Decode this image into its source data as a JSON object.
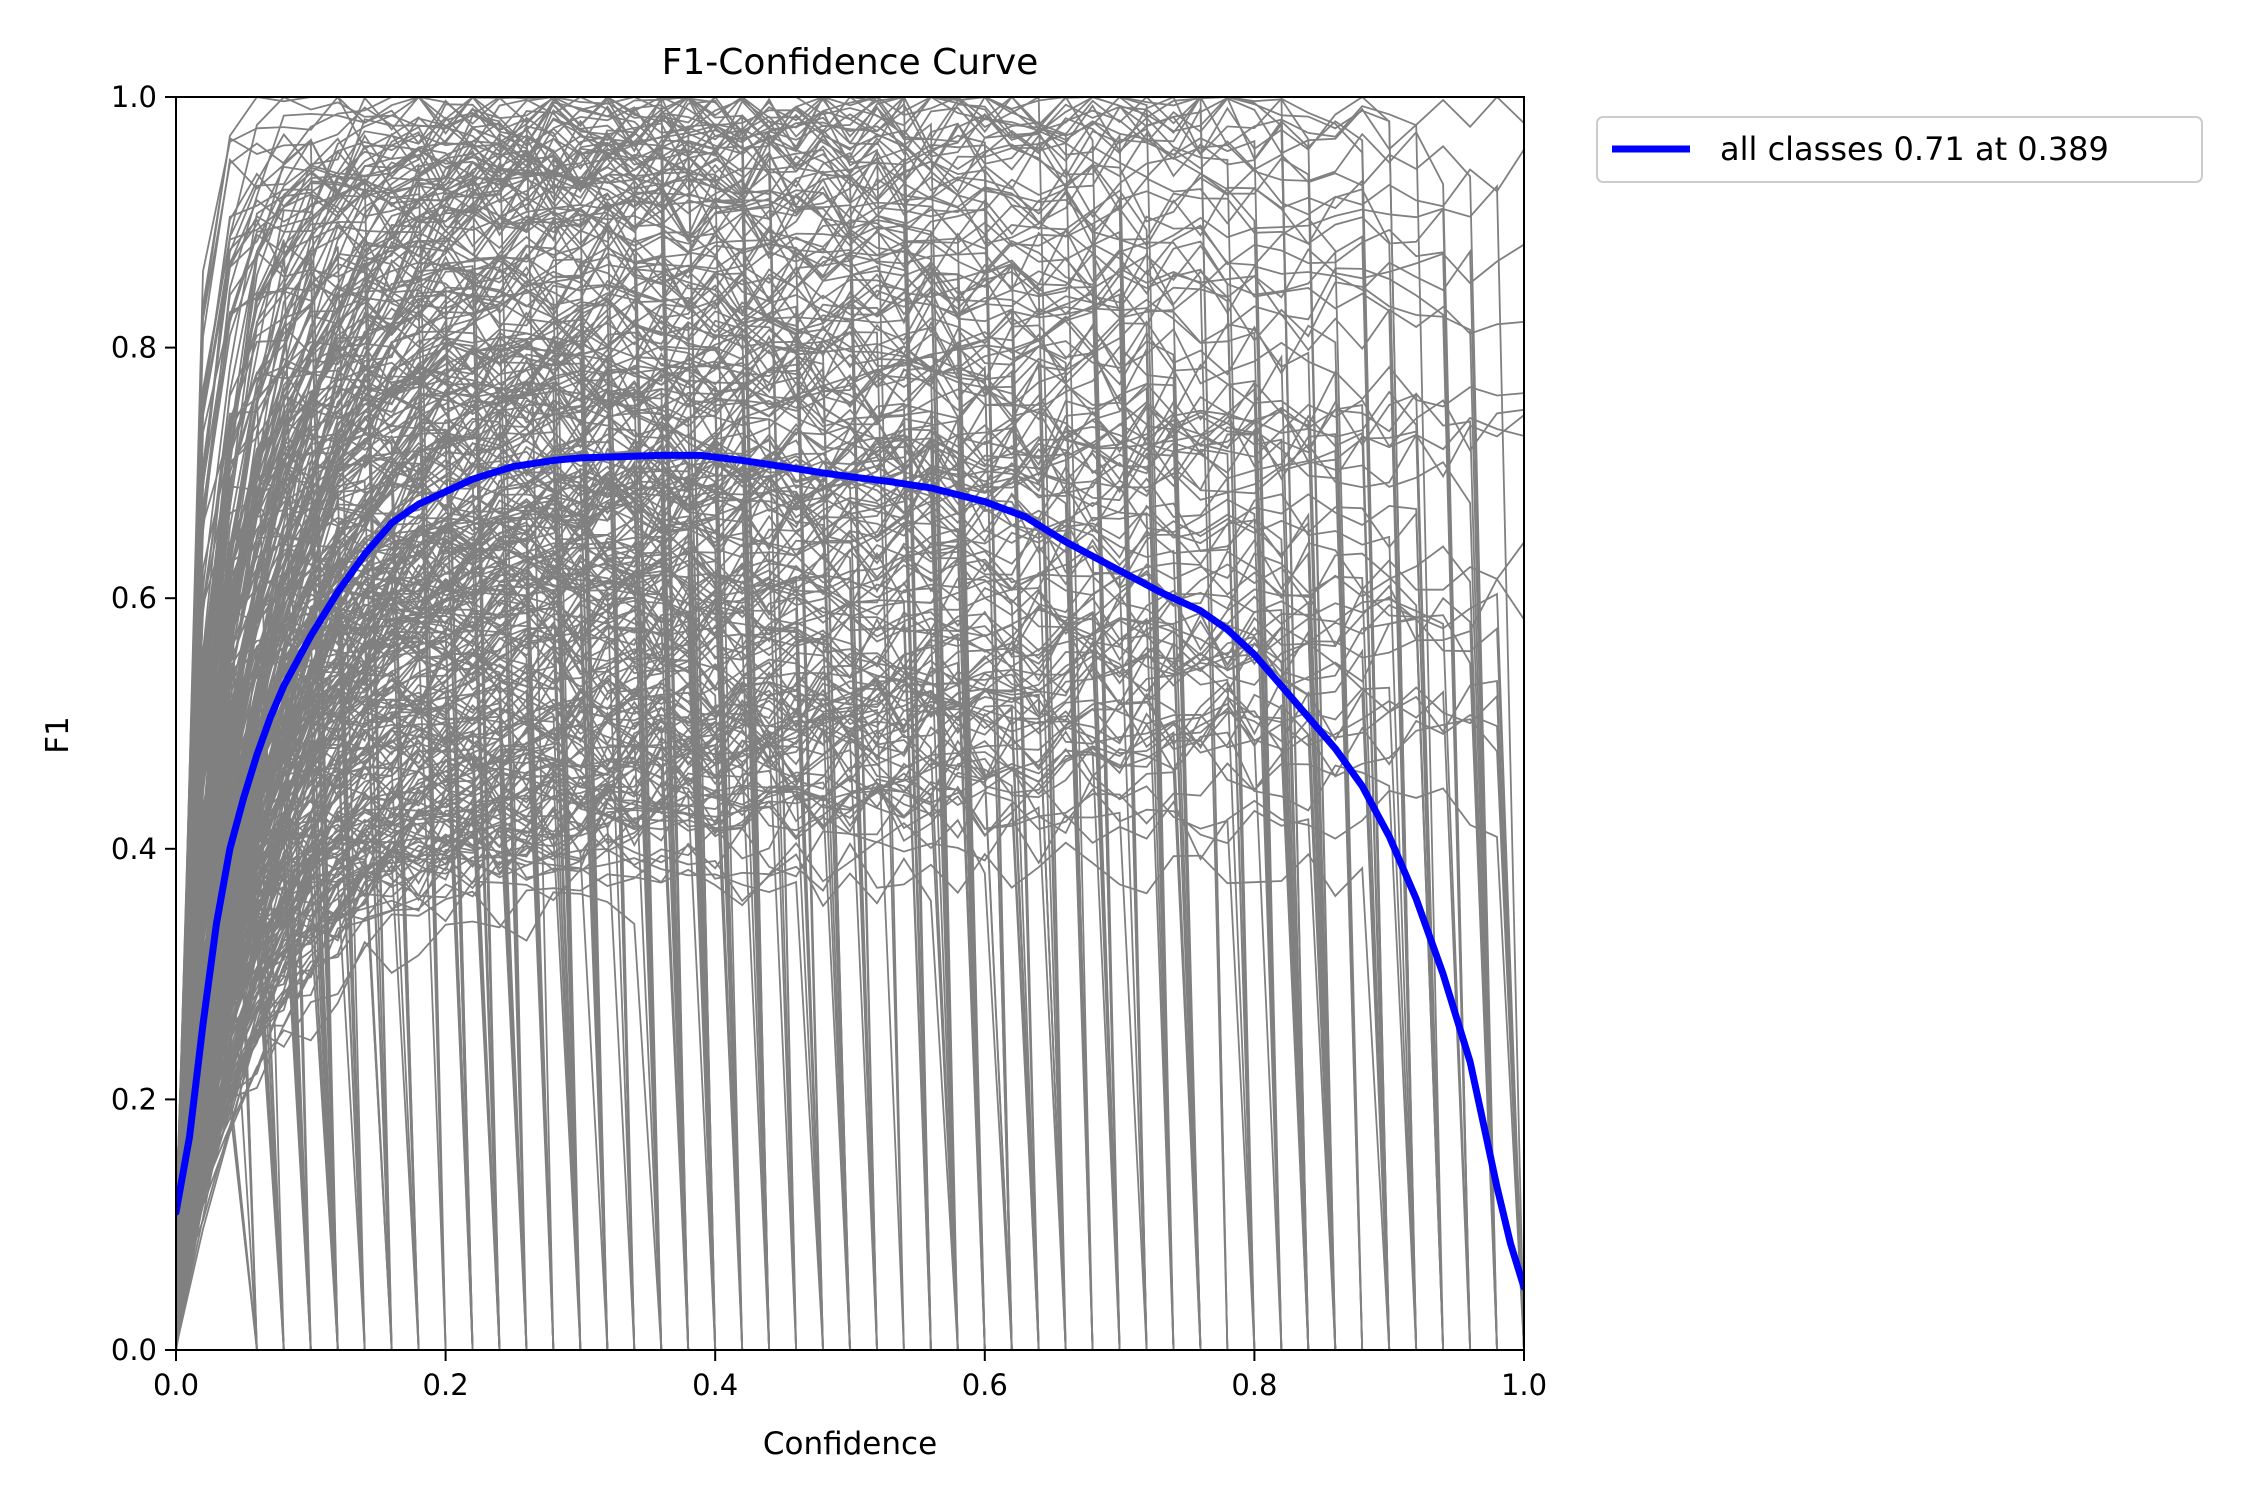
{
  "chart_data": {
    "type": "line",
    "title": "F1-Confidence Curve",
    "xlabel": "Confidence",
    "ylabel": "F1",
    "xlim": [
      0.0,
      1.0
    ],
    "ylim": [
      0.0,
      1.0
    ],
    "x_ticks": [
      "0.0",
      "0.2",
      "0.4",
      "0.6",
      "0.8",
      "1.0"
    ],
    "y_ticks": [
      "0.0",
      "0.2",
      "0.4",
      "0.6",
      "0.8",
      "1.0"
    ],
    "grid": false,
    "legend": {
      "placement": "outside-top-right",
      "entries": [
        "all classes 0.71 at 0.389"
      ]
    },
    "colors": {
      "all_classes": "#0000ff",
      "per_class": "#808080"
    },
    "series": [
      {
        "name": "all classes 0.71 at 0.389",
        "x": [
          0.0,
          0.01,
          0.02,
          0.03,
          0.04,
          0.05,
          0.06,
          0.07,
          0.08,
          0.09,
          0.1,
          0.12,
          0.14,
          0.16,
          0.18,
          0.2,
          0.22,
          0.25,
          0.28,
          0.3,
          0.33,
          0.36,
          0.389,
          0.42,
          0.45,
          0.48,
          0.5,
          0.53,
          0.56,
          0.6,
          0.63,
          0.66,
          0.7,
          0.73,
          0.76,
          0.78,
          0.8,
          0.82,
          0.84,
          0.86,
          0.88,
          0.9,
          0.92,
          0.94,
          0.96,
          0.97,
          0.98,
          0.99,
          1.0
        ],
        "y": [
          0.11,
          0.17,
          0.26,
          0.34,
          0.4,
          0.44,
          0.475,
          0.505,
          0.53,
          0.55,
          0.57,
          0.605,
          0.635,
          0.66,
          0.675,
          0.685,
          0.695,
          0.705,
          0.71,
          0.712,
          0.713,
          0.714,
          0.714,
          0.71,
          0.705,
          0.7,
          0.697,
          0.693,
          0.688,
          0.677,
          0.665,
          0.645,
          0.622,
          0.605,
          0.59,
          0.575,
          0.555,
          0.53,
          0.505,
          0.48,
          0.45,
          0.41,
          0.36,
          0.3,
          0.23,
          0.18,
          0.13,
          0.085,
          0.05
        ]
      }
    ]
  }
}
